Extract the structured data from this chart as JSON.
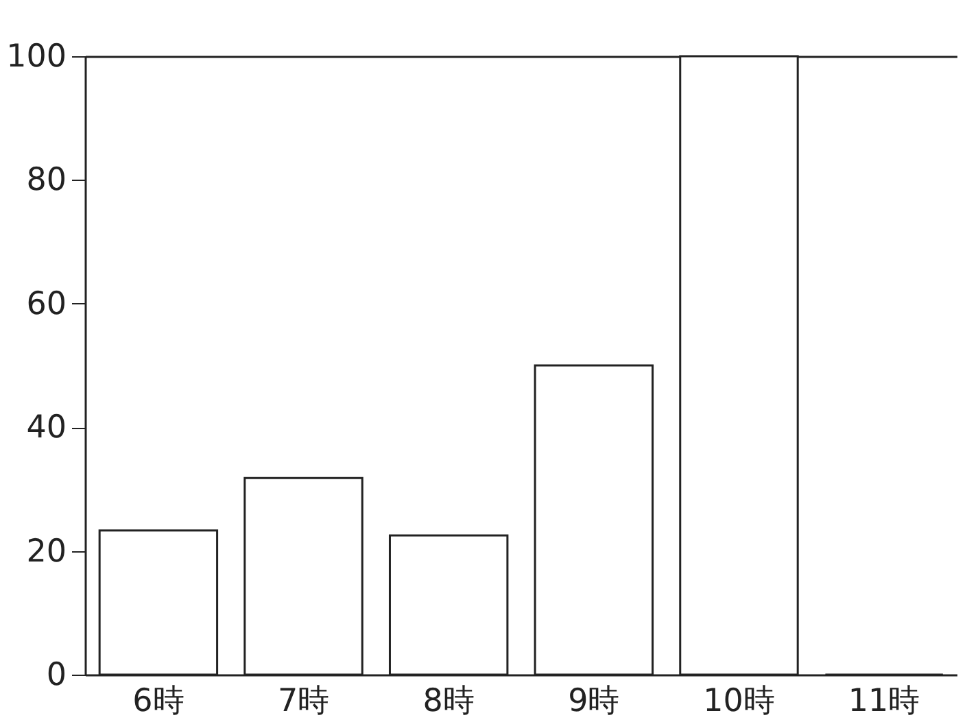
{
  "chart_data": {
    "type": "bar",
    "categories": [
      "6時",
      "7時",
      "8時",
      "9時",
      "10時",
      "11時"
    ],
    "values": [
      23.3,
      31.8,
      22.5,
      50,
      100,
      0
    ],
    "color": "#ffffff",
    "ylim": [
      0,
      100
    ],
    "yticks": [
      0,
      20,
      40,
      60,
      80,
      100
    ],
    "grid": false
  }
}
